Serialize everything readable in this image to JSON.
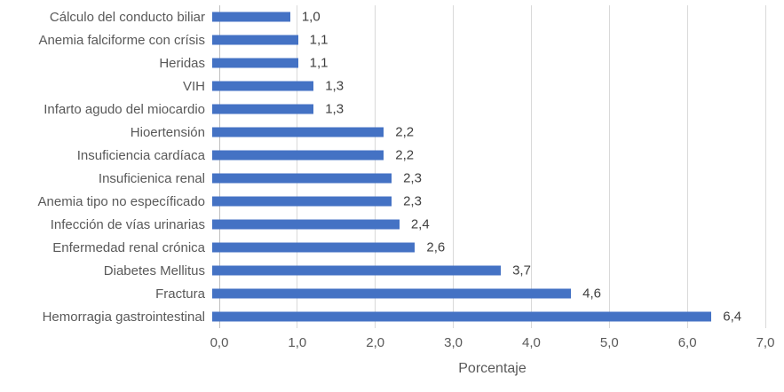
{
  "chart_data": {
    "type": "bar",
    "orientation": "horizontal",
    "title": "",
    "xlabel": "Porcentaje",
    "ylabel": "",
    "xlim": [
      0,
      7
    ],
    "grid": true,
    "legend": false,
    "bar_color": "#4472c4",
    "gridline_color": "#d9d9d9",
    "text_color": "#595959",
    "categories": [
      "Cálculo del conducto biliar",
      "Anemia falciforme con crísis",
      "Heridas",
      "VIH",
      "Infarto agudo del miocardio",
      "Hioertensión",
      "Insuficiencia cardíaca",
      "Insuficienica renal",
      "Anemia tipo no específicado",
      "Infección de vías urinarias",
      "Enfermedad renal crónica",
      "Diabetes Mellitus",
      "Fractura",
      "Hemorragia gastrointestinal"
    ],
    "values": [
      1.0,
      1.1,
      1.1,
      1.3,
      1.3,
      2.2,
      2.2,
      2.3,
      2.3,
      2.4,
      2.6,
      3.7,
      4.6,
      6.4
    ],
    "value_labels": [
      "1,0",
      "1,1",
      "1,1",
      "1,3",
      "1,3",
      "2,2",
      "2,2",
      "2,3",
      "2,3",
      "2,4",
      "2,6",
      "3,7",
      "4,6",
      "6,4"
    ],
    "x_ticks": [
      "0,0",
      "1,0",
      "2,0",
      "3,0",
      "4,0",
      "5,0",
      "6,0",
      "7,0"
    ]
  }
}
